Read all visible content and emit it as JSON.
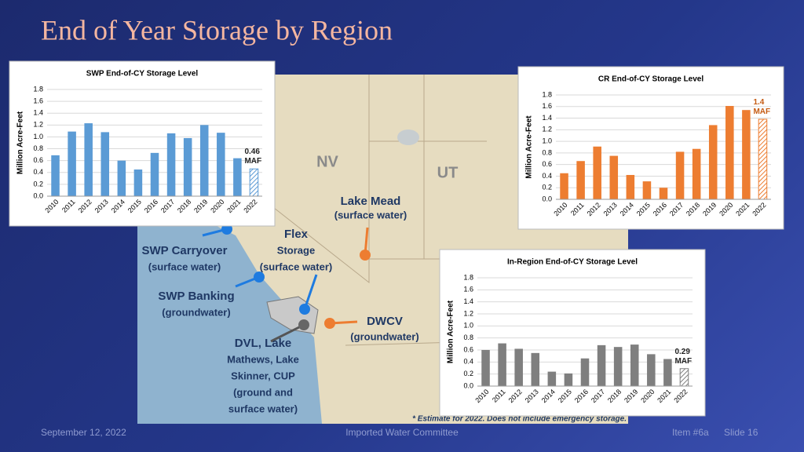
{
  "title": "End of Year Storage by Region",
  "map_labels": {
    "nv": "NV",
    "ut": "UT",
    "lake_mead": [
      "Lake Mead",
      "(surface water)"
    ],
    "flex": [
      "Flex",
      "Storage",
      "(surface water)"
    ],
    "swp_carryover": [
      "SWP Carryover",
      "(surface water)"
    ],
    "swp_banking": [
      "SWP Banking",
      "(groundwater)"
    ],
    "dwcv": [
      "DWCV",
      "(groundwater)"
    ],
    "dvl": [
      "DVL, Lake",
      "Mathews, Lake",
      "Skinner, CUP",
      "(ground and",
      "surface water)"
    ]
  },
  "footnote": "* Estimate for 2022.  Does not include emergency storage.",
  "footer": {
    "date": "September 12, 2022",
    "committee": "Imported Water Committee",
    "item": "Item #6a",
    "slide": "Slide 16"
  },
  "chart_data": [
    {
      "type": "bar",
      "title": "SWP End-of-CY Storage Level",
      "y_label": "Million Acre-Feet",
      "color": "#5b9bd5",
      "hatch_last": true,
      "categories": [
        "2010",
        "2011",
        "2012",
        "2013",
        "2014",
        "2015",
        "2016",
        "2017",
        "2018",
        "2019",
        "2020",
        "2021",
        "2022"
      ],
      "values": [
        0.69,
        1.09,
        1.23,
        1.08,
        0.6,
        0.45,
        0.73,
        1.06,
        0.98,
        1.2,
        1.07,
        0.64,
        0.46
      ],
      "value_labels": [
        null,
        null,
        null,
        null,
        null,
        null,
        null,
        null,
        null,
        null,
        null,
        null,
        "0.46 MAF"
      ],
      "ylim": [
        0,
        1.8
      ],
      "yticks": [
        {
          "value": 0,
          "label": "0.0"
        },
        0.2,
        0.4,
        0.6,
        0.8,
        {
          "value": 1,
          "label": "1.0"
        },
        1.2,
        1.4,
        1.6,
        1.8
      ]
    },
    {
      "type": "bar",
      "title": "CR End-of-CY Storage Level",
      "y_label": "Million Acre-Feet",
      "color": "#ed7d31",
      "hatch_last": true,
      "categories": [
        "2010",
        "2011",
        "2012",
        "2013",
        "2014",
        "2015",
        "2016",
        "2017",
        "2018",
        "2019",
        "2020",
        "2021",
        "2022"
      ],
      "values": [
        0.45,
        0.66,
        0.91,
        0.75,
        0.42,
        0.31,
        0.2,
        0.82,
        0.87,
        1.28,
        1.61,
        1.54,
        1.38
      ],
      "value_labels": [
        null,
        null,
        null,
        null,
        null,
        null,
        null,
        null,
        null,
        null,
        null,
        null,
        "1.4 MAF"
      ],
      "ylim": [
        0,
        1.8
      ],
      "yticks": [
        {
          "value": 0,
          "label": "0.0"
        },
        0.2,
        0.4,
        0.6,
        0.8,
        {
          "value": 1,
          "label": "1.0"
        },
        1.2,
        1.4,
        1.6,
        1.8
      ]
    },
    {
      "type": "bar",
      "title": "In-Region End-of-CY Storage Level",
      "y_label": "Million Acre-Feet",
      "color": "#7f7f7f",
      "hatch_last": true,
      "categories": [
        "2010",
        "2011",
        "2012",
        "2013",
        "2014",
        "2015",
        "2016",
        "2017",
        "2018",
        "2019",
        "2020",
        "2021",
        "2022"
      ],
      "values": [
        0.6,
        0.71,
        0.62,
        0.55,
        0.24,
        0.21,
        0.46,
        0.68,
        0.65,
        0.69,
        0.53,
        0.45,
        0.29
      ],
      "value_labels": [
        null,
        null,
        null,
        null,
        null,
        null,
        null,
        null,
        null,
        null,
        null,
        null,
        "0.29 MAF"
      ],
      "ylim": [
        0,
        1.8
      ],
      "yticks": [
        {
          "value": 0,
          "label": "0.0"
        },
        0.2,
        0.4,
        0.6,
        0.8,
        {
          "value": 1,
          "label": "1.0"
        },
        1.2,
        1.4,
        1.6,
        1.8
      ]
    }
  ]
}
